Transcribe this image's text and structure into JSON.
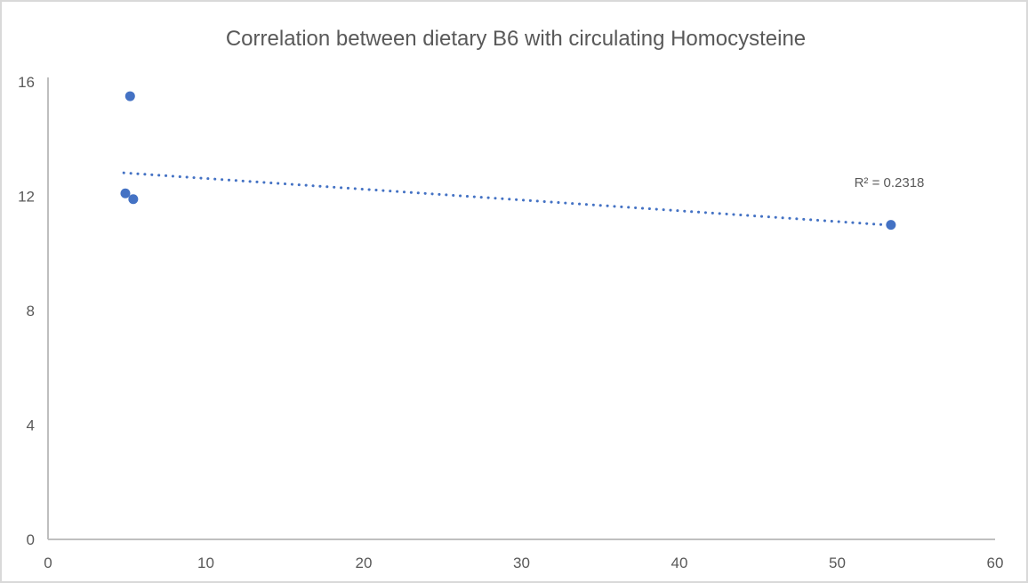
{
  "chart_data": {
    "type": "scatter",
    "title": "Correlation between dietary B6 with circulating Homocysteine",
    "xlabel": "",
    "ylabel": "",
    "xlim": [
      0,
      60
    ],
    "ylim": [
      0,
      16
    ],
    "x_ticks": [
      0,
      10,
      20,
      30,
      40,
      50,
      60
    ],
    "y_ticks": [
      0,
      4,
      8,
      12,
      16
    ],
    "grid": false,
    "legend": "none",
    "points": [
      {
        "x": 5.2,
        "y": 15.5
      },
      {
        "x": 4.9,
        "y": 12.1
      },
      {
        "x": 5.4,
        "y": 11.9
      },
      {
        "x": 53.4,
        "y": 11.0
      }
    ],
    "trendline": {
      "style": "dotted",
      "slope": -0.0377,
      "intercept": 13.0,
      "x_start": 4.8,
      "x_end": 53.4,
      "r_squared": 0.2318,
      "r_squared_label": "R² = 0.2318"
    },
    "colors": {
      "point": "#4472C4",
      "trendline": "#4472C4",
      "axis": "#BFBFBF",
      "tick_text": "#595959",
      "title_text": "#595959",
      "background": "#FFFFFF",
      "border": "#D9D9D9"
    }
  }
}
